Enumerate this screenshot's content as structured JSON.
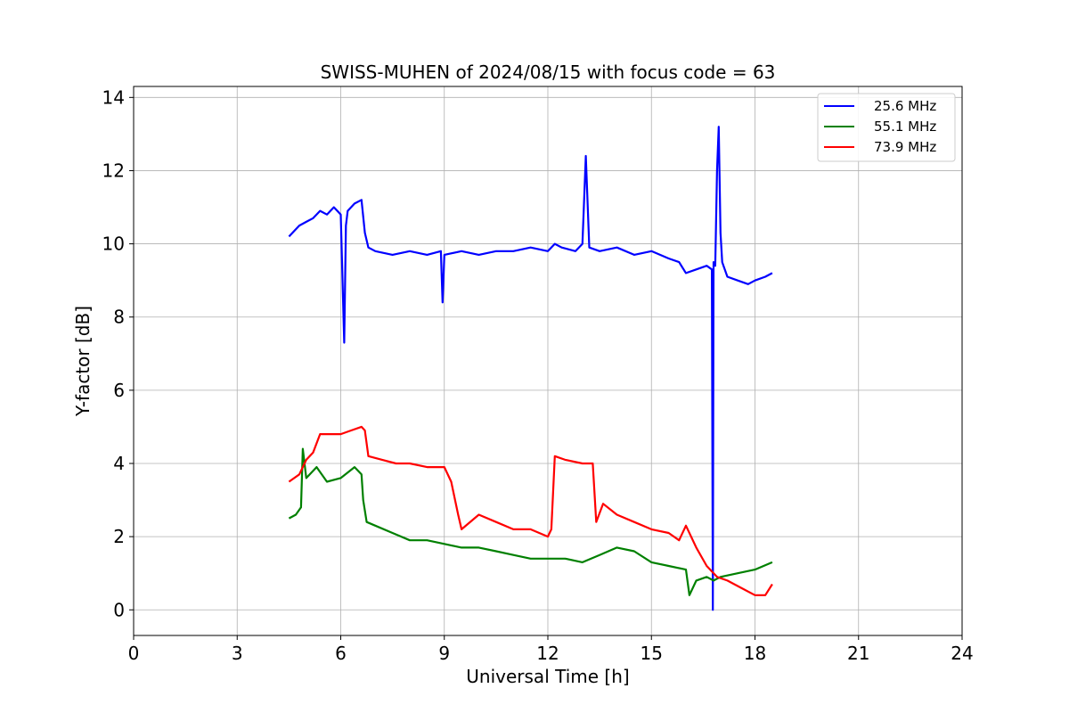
{
  "chart_data": {
    "type": "line",
    "title": "SWISS-MUHEN of 2024/08/15 with focus code = 63",
    "xlabel": "Universal Time [h]",
    "ylabel": "Y-factor [dB]",
    "xlim": [
      0,
      24
    ],
    "ylim": [
      -0.7,
      14.3
    ],
    "xticks": [
      "0",
      "3",
      "6",
      "9",
      "12",
      "15",
      "18",
      "21",
      "24"
    ],
    "yticks": [
      "0",
      "2",
      "4",
      "6",
      "8",
      "10",
      "12",
      "14"
    ],
    "grid": true,
    "legend_position": "top-right",
    "series": [
      {
        "name": "25.6 MHz",
        "color": "#0000ff",
        "x": [
          4.5,
          4.6,
          4.8,
          5.0,
          5.2,
          5.4,
          5.6,
          5.8,
          6.0,
          6.1,
          6.15,
          6.2,
          6.4,
          6.6,
          6.7,
          6.8,
          7.0,
          7.5,
          8.0,
          8.5,
          8.9,
          8.95,
          9.0,
          9.5,
          10.0,
          10.5,
          11.0,
          11.5,
          12.0,
          12.2,
          12.4,
          12.8,
          13.0,
          13.1,
          13.2,
          13.5,
          14.0,
          14.5,
          15.0,
          15.5,
          15.8,
          16.0,
          16.3,
          16.6,
          16.75,
          16.78,
          16.8,
          16.85,
          16.9,
          16.95,
          17.0,
          17.05,
          17.2,
          17.5,
          17.8,
          18.0,
          18.3,
          18.5
        ],
        "y": [
          10.2,
          10.3,
          10.5,
          10.6,
          10.7,
          10.9,
          10.8,
          11.0,
          10.8,
          7.3,
          10.5,
          10.9,
          11.1,
          11.2,
          10.3,
          9.9,
          9.8,
          9.7,
          9.8,
          9.7,
          9.8,
          8.4,
          9.7,
          9.8,
          9.7,
          9.8,
          9.8,
          9.9,
          9.8,
          10.0,
          9.9,
          9.8,
          10.0,
          12.4,
          9.9,
          9.8,
          9.9,
          9.7,
          9.8,
          9.6,
          9.5,
          9.2,
          9.3,
          9.4,
          9.3,
          0.0,
          9.5,
          9.4,
          12.0,
          13.2,
          10.3,
          9.5,
          9.1,
          9.0,
          8.9,
          9.0,
          9.1,
          9.2
        ]
      },
      {
        "name": "55.1 MHz",
        "color": "#008000",
        "x": [
          4.5,
          4.7,
          4.85,
          4.9,
          5.0,
          5.3,
          5.6,
          6.0,
          6.4,
          6.6,
          6.65,
          6.75,
          7.0,
          7.5,
          8.0,
          8.5,
          9.0,
          9.5,
          10.0,
          10.5,
          11.0,
          11.5,
          12.0,
          12.5,
          13.0,
          13.5,
          14.0,
          14.5,
          15.0,
          15.5,
          16.0,
          16.1,
          16.3,
          16.6,
          16.8,
          17.0,
          17.5,
          18.0,
          18.5
        ],
        "y": [
          2.5,
          2.6,
          2.8,
          4.4,
          3.6,
          3.9,
          3.5,
          3.6,
          3.9,
          3.7,
          3.0,
          2.4,
          2.3,
          2.1,
          1.9,
          1.9,
          1.8,
          1.7,
          1.7,
          1.6,
          1.5,
          1.4,
          1.4,
          1.4,
          1.3,
          1.5,
          1.7,
          1.6,
          1.3,
          1.2,
          1.1,
          0.4,
          0.8,
          0.9,
          0.8,
          0.9,
          1.0,
          1.1,
          1.3
        ]
      },
      {
        "name": "73.9 MHz",
        "color": "#ff0000",
        "x": [
          4.5,
          4.8,
          5.0,
          5.2,
          5.4,
          5.7,
          6.0,
          6.3,
          6.6,
          6.7,
          6.8,
          7.2,
          7.6,
          8.0,
          8.5,
          9.0,
          9.2,
          9.4,
          9.5,
          10.0,
          10.5,
          11.0,
          11.5,
          12.0,
          12.1,
          12.2,
          12.5,
          13.0,
          13.3,
          13.4,
          13.6,
          14.0,
          14.5,
          15.0,
          15.5,
          15.8,
          16.0,
          16.3,
          16.6,
          16.9,
          17.2,
          17.6,
          18.0,
          18.3,
          18.5
        ],
        "y": [
          3.5,
          3.7,
          4.1,
          4.3,
          4.8,
          4.8,
          4.8,
          4.9,
          5.0,
          4.9,
          4.2,
          4.1,
          4.0,
          4.0,
          3.9,
          3.9,
          3.5,
          2.6,
          2.2,
          2.6,
          2.4,
          2.2,
          2.2,
          2.0,
          2.2,
          4.2,
          4.1,
          4.0,
          4.0,
          2.4,
          2.9,
          2.6,
          2.4,
          2.2,
          2.1,
          1.9,
          2.3,
          1.7,
          1.2,
          0.9,
          0.8,
          0.6,
          0.4,
          0.4,
          0.7
        ]
      }
    ]
  }
}
